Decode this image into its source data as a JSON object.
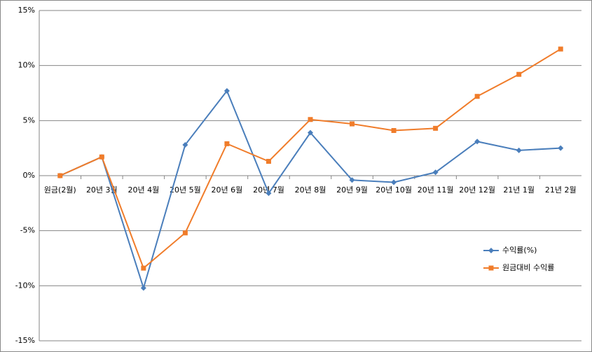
{
  "chart_data": {
    "type": "line",
    "categories": [
      "원금(2월)",
      "20년 3월",
      "20년 4월",
      "20년 5월",
      "20년 6월",
      "20년 7월",
      "20년 8월",
      "20년 9월",
      "20년 10월",
      "20년 11월",
      "20년 12월",
      "21년 1월",
      "21년 2월"
    ],
    "series": [
      {
        "name": "수익률(%)",
        "color": "#4a7ebb",
        "marker": "diamond",
        "values": [
          0,
          1.7,
          -10.2,
          2.8,
          7.7,
          -1.6,
          3.9,
          -0.4,
          -0.6,
          0.3,
          3.1,
          2.3,
          2.5
        ]
      },
      {
        "name": "원금대비 수익률",
        "color": "#f07c2a",
        "marker": "square",
        "values": [
          0,
          1.7,
          -8.4,
          -5.2,
          2.9,
          1.3,
          5.1,
          4.7,
          4.1,
          4.3,
          7.2,
          9.2,
          11.5
        ]
      }
    ],
    "ylim": [
      -15,
      15
    ],
    "yticks": [
      {
        "value": -15,
        "label": "-15%"
      },
      {
        "value": -10,
        "label": "-10%"
      },
      {
        "value": -5,
        "label": "-5%"
      },
      {
        "value": 0,
        "label": "0%"
      },
      {
        "value": 5,
        "label": "5%"
      },
      {
        "value": 10,
        "label": "10%"
      },
      {
        "value": 15,
        "label": "15%"
      }
    ],
    "grid": true,
    "legend_position": "right"
  }
}
